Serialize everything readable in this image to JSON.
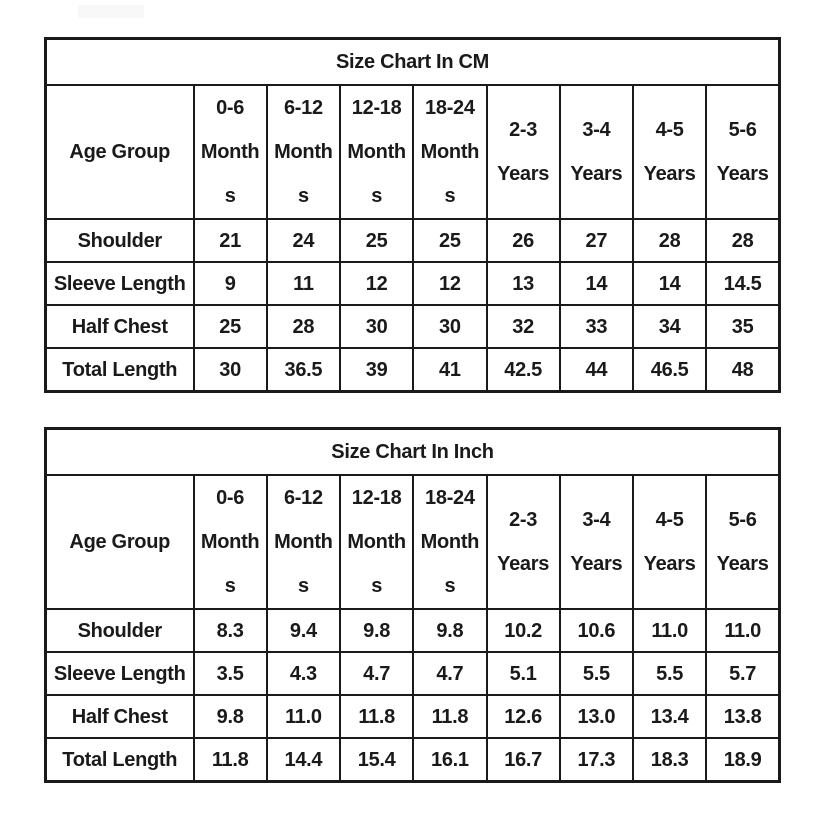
{
  "page": {
    "background": "#ffffff",
    "watermark_color": "#f8f8f8"
  },
  "colors": {
    "border": "#1a1a1a",
    "text": "#1a1a1a",
    "cell_background": "#ffffff"
  },
  "tables": [
    {
      "title": "Size Chart In CM",
      "corner_label": "Age Group",
      "columns": [
        "0-6 Months",
        "6-12 Months",
        "12-18 Months",
        "18-24 Months",
        "2-3 Years",
        "3-4 Years",
        "4-5 Years",
        "5-6 Years"
      ],
      "columns_display": [
        "0-6\nMonth\ns",
        "6-12\nMonth\ns",
        "12-18\nMonth\ns",
        "18-24\nMonth\ns",
        "2-3\nYears",
        "3-4\nYears",
        "4-5\nYears",
        "5-6\nYears"
      ],
      "rows": [
        {
          "label": "Shoulder",
          "values": [
            "21",
            "24",
            "25",
            "25",
            "26",
            "27",
            "28",
            "28"
          ]
        },
        {
          "label": "Sleeve Length",
          "values": [
            "9",
            "11",
            "12",
            "12",
            "13",
            "14",
            "14",
            "14.5"
          ]
        },
        {
          "label": "Half Chest",
          "values": [
            "25",
            "28",
            "30",
            "30",
            "32",
            "33",
            "34",
            "35"
          ]
        },
        {
          "label": "Total Length",
          "values": [
            "30",
            "36.5",
            "39",
            "41",
            "42.5",
            "44",
            "46.5",
            "48"
          ]
        }
      ]
    },
    {
      "title": "Size Chart In Inch",
      "corner_label": "Age Group",
      "columns": [
        "0-6 Months",
        "6-12 Months",
        "12-18 Months",
        "18-24 Months",
        "2-3 Years",
        "3-4 Years",
        "4-5 Years",
        "5-6 Years"
      ],
      "columns_display": [
        "0-6\nMonth\ns",
        "6-12\nMonth\ns",
        "12-18\nMonth\ns",
        "18-24\nMonth\ns",
        "2-3\nYears",
        "3-4\nYears",
        "4-5\nYears",
        "5-6\nYears"
      ],
      "rows": [
        {
          "label": "Shoulder",
          "values": [
            "8.3",
            "9.4",
            "9.8",
            "9.8",
            "10.2",
            "10.6",
            "11.0",
            "11.0"
          ]
        },
        {
          "label": "Sleeve Length",
          "values": [
            "3.5",
            "4.3",
            "4.7",
            "4.7",
            "5.1",
            "5.5",
            "5.5",
            "5.7"
          ]
        },
        {
          "label": "Half Chest",
          "values": [
            "9.8",
            "11.0",
            "11.8",
            "11.8",
            "12.6",
            "13.0",
            "13.4",
            "13.8"
          ]
        },
        {
          "label": "Total Length",
          "values": [
            "11.8",
            "14.4",
            "15.4",
            "16.1",
            "16.7",
            "17.3",
            "18.3",
            "18.9"
          ]
        }
      ]
    }
  ],
  "chart_data": [
    {
      "type": "table",
      "title": "Size Chart In CM",
      "unit": "cm",
      "columns": [
        "0-6 Months",
        "6-12 Months",
        "12-18 Months",
        "18-24 Months",
        "2-3 Years",
        "3-4 Years",
        "4-5 Years",
        "5-6 Years"
      ],
      "rows": [
        {
          "label": "Shoulder",
          "values": [
            21,
            24,
            25,
            25,
            26,
            27,
            28,
            28
          ]
        },
        {
          "label": "Sleeve Length",
          "values": [
            9,
            11,
            12,
            12,
            13,
            14,
            14,
            14.5
          ]
        },
        {
          "label": "Half Chest",
          "values": [
            25,
            28,
            30,
            30,
            32,
            33,
            34,
            35
          ]
        },
        {
          "label": "Total Length",
          "values": [
            30,
            36.5,
            39,
            41,
            42.5,
            44,
            46.5,
            48
          ]
        }
      ]
    },
    {
      "type": "table",
      "title": "Size Chart In Inch",
      "unit": "inch",
      "columns": [
        "0-6 Months",
        "6-12 Months",
        "12-18 Months",
        "18-24 Months",
        "2-3 Years",
        "3-4 Years",
        "4-5 Years",
        "5-6 Years"
      ],
      "rows": [
        {
          "label": "Shoulder",
          "values": [
            8.3,
            9.4,
            9.8,
            9.8,
            10.2,
            10.6,
            11.0,
            11.0
          ]
        },
        {
          "label": "Sleeve Length",
          "values": [
            3.5,
            4.3,
            4.7,
            4.7,
            5.1,
            5.5,
            5.5,
            5.7
          ]
        },
        {
          "label": "Half Chest",
          "values": [
            9.8,
            11.0,
            11.8,
            11.8,
            12.6,
            13.0,
            13.4,
            13.8
          ]
        },
        {
          "label": "Total Length",
          "values": [
            11.8,
            14.4,
            15.4,
            16.1,
            16.7,
            17.3,
            18.3,
            18.9
          ]
        }
      ]
    }
  ]
}
